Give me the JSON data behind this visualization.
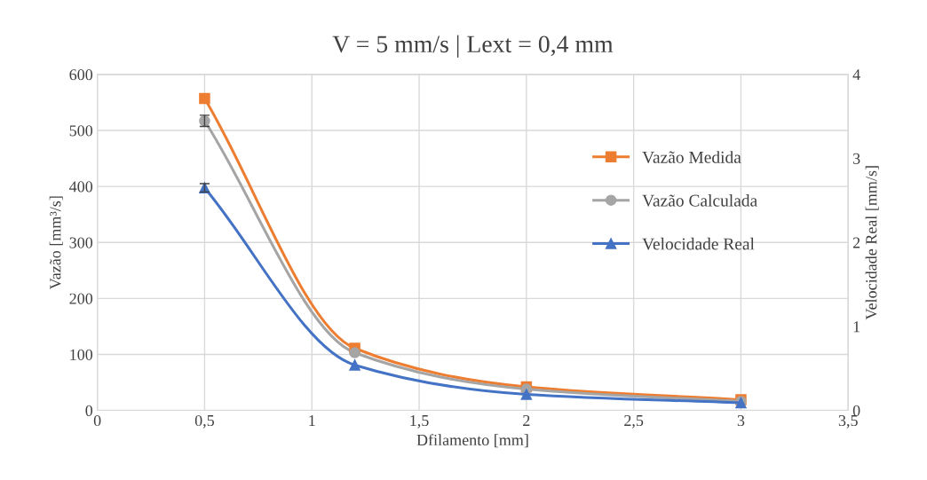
{
  "chart_data": {
    "type": "line",
    "title": "V = 5 mm/s | Lext = 0,4 mm",
    "xlabel": "Dfilamento [mm]",
    "ylabel": "Vazão [mm³/s]",
    "y2label": "Velocidade Real [mm/s]",
    "x": [
      0.5,
      1.2,
      2,
      3
    ],
    "series": [
      {
        "name": "Vazão Medida",
        "color": "#ed7d31",
        "marker": "square",
        "values": [
          557,
          111,
          42,
          19
        ]
      },
      {
        "name": "Vazão Calculada",
        "color": "#a5a5a5",
        "marker": "circle",
        "values": [
          517,
          103,
          38,
          16
        ],
        "errors": [
          10,
          null,
          null,
          null
        ]
      },
      {
        "name": "Velocidade Real",
        "color": "#4472c4",
        "marker": "triangle",
        "axis": "y2",
        "values": [
          2.65,
          0.54,
          0.19,
          0.09
        ],
        "errors": [
          0.05,
          null,
          null,
          null
        ]
      }
    ],
    "xlim": [
      0,
      3.5
    ],
    "xticks": [
      0,
      {
        "value": 0.5,
        "label": "0,5"
      },
      1,
      {
        "value": 1.5,
        "label": "1,5"
      },
      2,
      {
        "value": 2.5,
        "label": "2,5"
      },
      3,
      {
        "value": 3.5,
        "label": "3,5"
      }
    ],
    "ylim": [
      0,
      600
    ],
    "yticks": [
      0,
      100,
      200,
      300,
      400,
      500,
      600
    ],
    "y2lim": [
      0,
      4
    ],
    "y2ticks": [
      0,
      1,
      2,
      3,
      4
    ],
    "grid": true,
    "legend": "right",
    "line_style": "solid"
  }
}
